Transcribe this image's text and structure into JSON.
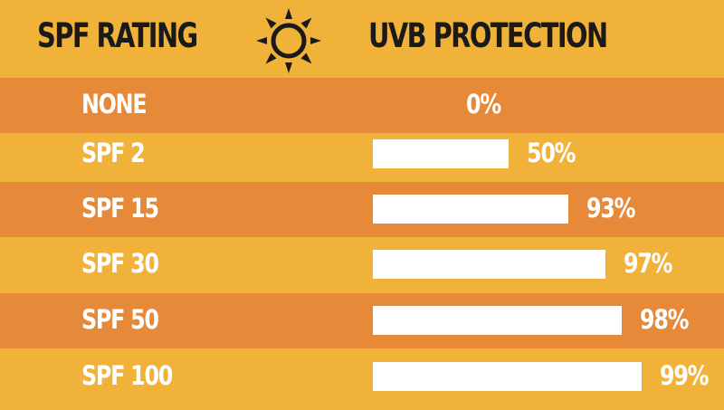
{
  "header": {
    "left_title": "SPF RATING",
    "right_title": "UVB PROTECTION",
    "icon": "sun-icon"
  },
  "colors": {
    "background": "#f1b23a",
    "band": "#e68a3a",
    "bar": "#ffffff",
    "header_text": "#1a1a1a"
  },
  "chart_data": {
    "type": "bar",
    "orientation": "horizontal",
    "categories": [
      "NONE",
      "SPF 2",
      "SPF 15",
      "SPF 30",
      "SPF 50",
      "SPF 100"
    ],
    "values": [
      0,
      50,
      93,
      97,
      98,
      99
    ],
    "value_labels": [
      "0%",
      "50%",
      "93%",
      "97%",
      "98%",
      "99%"
    ],
    "xlim": [
      0,
      100
    ],
    "grid": false
  }
}
